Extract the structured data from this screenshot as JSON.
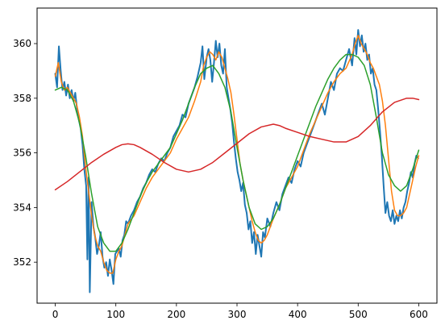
{
  "chart_data": {
    "type": "line",
    "title": "",
    "xlabel": "",
    "ylabel": "",
    "xlim": [
      -30,
      630
    ],
    "ylim": [
      350.5,
      361.3
    ],
    "grid": false,
    "x_ticks": [
      0,
      100,
      200,
      300,
      400,
      500,
      600
    ],
    "x_tick_labels": [
      "0",
      "100",
      "200",
      "300",
      "400",
      "500",
      "600"
    ],
    "y_ticks": [
      352,
      354,
      356,
      358,
      360
    ],
    "y_tick_labels": [
      "352",
      "354",
      "356",
      "358",
      "360"
    ],
    "series": [
      {
        "color": "#1f77b4",
        "width": 2,
        "x": [
          0,
          3,
          6,
          9,
          12,
          15,
          18,
          21,
          24,
          27,
          30,
          33,
          36,
          39,
          42,
          45,
          48,
          51,
          53,
          55,
          57,
          60,
          63,
          66,
          69,
          72,
          75,
          78,
          81,
          84,
          87,
          90,
          93,
          96,
          99,
          102,
          105,
          108,
          111,
          114,
          117,
          120,
          125,
          130,
          135,
          140,
          145,
          150,
          155,
          160,
          165,
          170,
          175,
          180,
          185,
          190,
          195,
          200,
          205,
          210,
          215,
          220,
          225,
          230,
          235,
          240,
          243,
          246,
          250,
          253,
          256,
          259,
          262,
          265,
          268,
          271,
          274,
          277,
          280,
          283,
          286,
          289,
          292,
          295,
          298,
          301,
          304,
          307,
          310,
          313,
          316,
          319,
          322,
          325,
          328,
          331,
          334,
          337,
          340,
          343,
          346,
          350,
          355,
          360,
          365,
          370,
          375,
          380,
          385,
          390,
          395,
          400,
          405,
          410,
          415,
          420,
          425,
          430,
          435,
          440,
          445,
          450,
          455,
          460,
          465,
          470,
          475,
          480,
          485,
          490,
          494,
          497,
          500,
          503,
          506,
          509,
          512,
          515,
          518,
          521,
          524,
          527,
          530,
          533,
          536,
          539,
          542,
          545,
          548,
          551,
          554,
          557,
          560,
          563,
          566,
          569,
          572,
          575,
          578,
          581,
          584,
          587,
          590,
          593,
          596,
          599
        ],
        "y": [
          358.9,
          358.4,
          359.9,
          359.0,
          358.3,
          358.6,
          358.1,
          358.5,
          358.0,
          358.3,
          357.9,
          358.2,
          357.6,
          357.2,
          356.9,
          356.3,
          355.4,
          354.8,
          352.1,
          355.1,
          350.9,
          354.2,
          353.3,
          352.9,
          352.3,
          352.6,
          353.1,
          352.2,
          351.8,
          352.0,
          351.5,
          352.1,
          351.7,
          351.2,
          352.3,
          352.4,
          352.5,
          352.2,
          352.8,
          353.0,
          353.5,
          353.4,
          353.7,
          353.9,
          354.2,
          354.4,
          354.7,
          354.9,
          355.2,
          355.4,
          355.3,
          355.6,
          355.8,
          355.7,
          356.0,
          356.2,
          356.6,
          356.8,
          357.0,
          357.4,
          357.3,
          357.8,
          358.1,
          358.4,
          358.8,
          359.3,
          359.9,
          358.7,
          359.5,
          359.8,
          359.4,
          358.6,
          359.3,
          360.1,
          359.5,
          360.0,
          359.2,
          358.9,
          359.8,
          358.4,
          358.0,
          357.6,
          357.1,
          356.4,
          355.8,
          355.3,
          355.0,
          354.6,
          354.9,
          354.1,
          353.8,
          353.2,
          353.5,
          352.7,
          353.1,
          352.3,
          353.0,
          352.6,
          352.2,
          353.1,
          352.9,
          353.6,
          353.3,
          353.8,
          354.2,
          353.9,
          354.5,
          354.8,
          355.1,
          354.9,
          355.4,
          355.7,
          355.5,
          356.0,
          356.3,
          356.6,
          356.9,
          357.2,
          357.5,
          357.8,
          357.4,
          358.0,
          358.6,
          358.3,
          358.9,
          359.1,
          359.0,
          359.4,
          359.8,
          359.2,
          360.2,
          359.6,
          360.5,
          359.9,
          360.3,
          359.7,
          360.0,
          359.4,
          359.6,
          358.9,
          359.1,
          358.5,
          358.3,
          357.6,
          356.8,
          355.9,
          354.8,
          353.8,
          354.2,
          353.7,
          353.5,
          353.9,
          353.4,
          353.7,
          353.5,
          353.9,
          353.6,
          354.0,
          354.2,
          354.6,
          354.9,
          355.3,
          355.1,
          355.6,
          355.9,
          355.8
        ]
      },
      {
        "color": "#ff7f0e",
        "width": 1.5,
        "x": [
          0,
          5,
          10,
          15,
          20,
          25,
          30,
          35,
          40,
          45,
          50,
          55,
          60,
          65,
          70,
          75,
          80,
          85,
          90,
          95,
          100,
          105,
          110,
          115,
          120,
          130,
          140,
          150,
          160,
          170,
          180,
          190,
          200,
          210,
          220,
          230,
          240,
          245,
          250,
          255,
          260,
          265,
          270,
          275,
          280,
          285,
          290,
          295,
          300,
          305,
          310,
          315,
          320,
          325,
          330,
          335,
          340,
          345,
          350,
          360,
          370,
          380,
          390,
          400,
          410,
          420,
          430,
          440,
          450,
          460,
          470,
          480,
          490,
          495,
          500,
          505,
          510,
          515,
          520,
          525,
          530,
          535,
          540,
          545,
          550,
          555,
          560,
          565,
          570,
          575,
          580,
          585,
          590,
          595,
          600
        ],
        "y": [
          358.8,
          359.3,
          358.6,
          358.3,
          358.4,
          358.2,
          358.0,
          357.8,
          357.3,
          356.6,
          355.5,
          354.6,
          353.7,
          353.0,
          352.6,
          352.4,
          352.0,
          351.7,
          351.6,
          351.6,
          352.1,
          352.4,
          352.6,
          353.0,
          353.4,
          353.7,
          354.2,
          354.7,
          355.1,
          355.4,
          355.7,
          356.0,
          356.5,
          356.9,
          357.3,
          357.9,
          358.6,
          359.2,
          359.5,
          359.7,
          359.6,
          359.4,
          359.7,
          359.5,
          359.1,
          358.7,
          358.2,
          357.4,
          356.5,
          355.6,
          355.0,
          354.5,
          354.0,
          353.5,
          353.1,
          352.8,
          352.7,
          352.8,
          353.0,
          353.6,
          354.1,
          354.7,
          355.1,
          355.5,
          356.1,
          356.7,
          357.2,
          357.7,
          358.2,
          358.6,
          358.9,
          359.1,
          359.6,
          360.0,
          360.3,
          360.0,
          359.8,
          359.6,
          359.3,
          359.1,
          358.8,
          358.5,
          357.9,
          357.0,
          355.8,
          354.6,
          353.9,
          353.7,
          353.7,
          353.8,
          354.0,
          354.5,
          355.0,
          355.5,
          355.9
        ]
      },
      {
        "color": "#2ca02c",
        "width": 1.5,
        "x": [
          0,
          10,
          20,
          30,
          40,
          50,
          60,
          70,
          80,
          90,
          100,
          110,
          120,
          130,
          140,
          150,
          160,
          170,
          180,
          190,
          200,
          210,
          220,
          230,
          240,
          250,
          260,
          270,
          280,
          290,
          300,
          310,
          320,
          330,
          340,
          350,
          360,
          370,
          380,
          390,
          400,
          410,
          420,
          430,
          440,
          450,
          460,
          470,
          480,
          490,
          500,
          510,
          520,
          530,
          540,
          550,
          560,
          570,
          580,
          590,
          600
        ],
        "y": [
          358.3,
          358.4,
          358.3,
          357.9,
          357.1,
          355.9,
          354.5,
          353.3,
          352.7,
          352.4,
          352.4,
          352.7,
          353.2,
          353.8,
          354.4,
          354.9,
          355.3,
          355.6,
          355.9,
          356.2,
          356.7,
          357.2,
          357.8,
          358.4,
          358.9,
          359.1,
          359.2,
          358.9,
          358.4,
          357.5,
          356.2,
          355.0,
          354.0,
          353.4,
          353.2,
          353.3,
          353.6,
          354.1,
          354.7,
          355.3,
          355.9,
          356.5,
          357.1,
          357.7,
          358.2,
          358.7,
          359.1,
          359.4,
          359.6,
          359.6,
          359.5,
          359.2,
          358.5,
          357.3,
          356.0,
          355.2,
          354.8,
          354.6,
          354.8,
          355.4,
          356.1
        ]
      },
      {
        "color": "#d62728",
        "width": 1.5,
        "x": [
          0,
          20,
          40,
          60,
          80,
          100,
          110,
          120,
          130,
          140,
          160,
          180,
          200,
          220,
          240,
          260,
          280,
          300,
          320,
          340,
          360,
          370,
          380,
          400,
          420,
          440,
          460,
          480,
          500,
          520,
          540,
          560,
          580,
          590,
          600
        ],
        "y": [
          354.65,
          354.95,
          355.3,
          355.65,
          355.95,
          356.2,
          356.3,
          356.33,
          356.3,
          356.2,
          355.95,
          355.65,
          355.4,
          355.3,
          355.4,
          355.65,
          356.0,
          356.35,
          356.7,
          356.95,
          357.05,
          357.0,
          356.9,
          356.75,
          356.6,
          356.5,
          356.4,
          356.4,
          356.6,
          357.0,
          357.5,
          357.85,
          358.0,
          358.0,
          357.95
        ]
      }
    ]
  }
}
